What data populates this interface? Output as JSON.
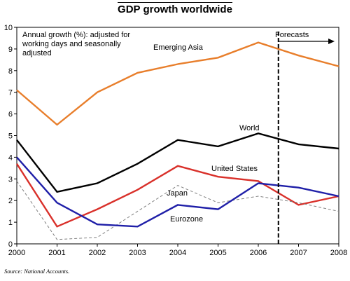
{
  "chart_data": {
    "type": "line",
    "title": "GDP growth worldwide",
    "note_lines": [
      "Annual growth (%): adjusted for",
      "working days and seasonally",
      "adjusted"
    ],
    "forecast_label": "Forecasts",
    "forecast_start": 2006.5,
    "source": "Source: National Accounts.",
    "x": [
      2000,
      2001,
      2002,
      2003,
      2004,
      2005,
      2006,
      2007,
      2008
    ],
    "x_ticks": [
      "2000",
      "2001",
      "2002",
      "2003",
      "2004",
      "2005",
      "2006",
      "2007",
      "2008"
    ],
    "xlim": [
      2000,
      2008
    ],
    "ylim": [
      0,
      10
    ],
    "y_ticks": [
      "0",
      "1",
      "2",
      "3",
      "4",
      "5",
      "6",
      "7",
      "8",
      "9",
      "10"
    ],
    "grid": false,
    "series": [
      {
        "name": "Emerging Asia",
        "color": "#E87E2B",
        "dash": "solid",
        "values": [
          7.1,
          5.5,
          7.0,
          7.9,
          8.3,
          8.6,
          9.3,
          8.7,
          8.2
        ]
      },
      {
        "name": "World",
        "color": "#000000",
        "dash": "solid",
        "values": [
          4.8,
          2.4,
          2.8,
          3.7,
          4.8,
          4.5,
          5.1,
          4.6,
          4.4
        ]
      },
      {
        "name": "United States",
        "color": "#D9302A",
        "dash": "solid",
        "values": [
          3.7,
          0.8,
          1.6,
          2.5,
          3.6,
          3.1,
          2.9,
          1.8,
          2.2
        ]
      },
      {
        "name": "Japan",
        "color": "#808080",
        "dash": "dashed",
        "values": [
          2.9,
          0.2,
          0.3,
          1.5,
          2.7,
          1.9,
          2.2,
          1.9,
          1.5
        ]
      },
      {
        "name": "Eurozone",
        "color": "#1F1FA8",
        "dash": "solid",
        "values": [
          4.0,
          1.9,
          0.9,
          0.8,
          1.8,
          1.6,
          2.8,
          2.6,
          2.2
        ]
      }
    ]
  }
}
